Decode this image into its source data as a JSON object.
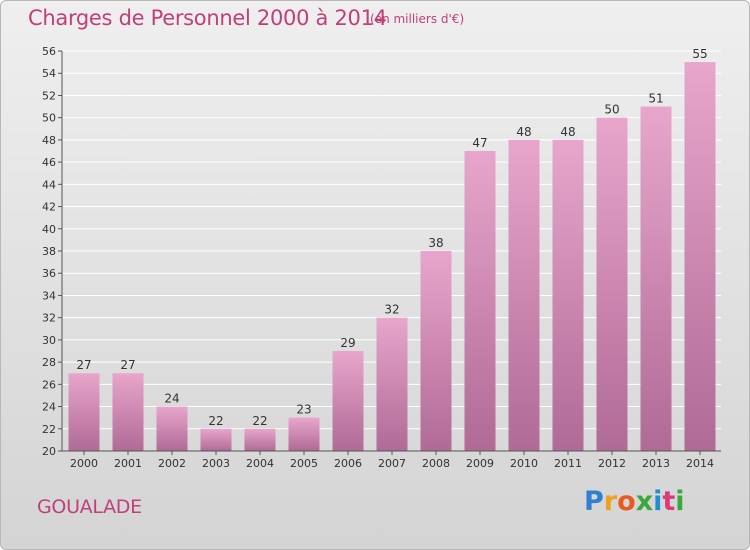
{
  "title": "Charges de Personnel 2000 à 2014",
  "subtitle": "(en milliers d'€)",
  "commune": "GOUALADE",
  "logo": {
    "letters": [
      "P",
      "r",
      "o",
      "x",
      "i",
      "t",
      "i"
    ],
    "colors": [
      "#2f7fd0",
      "#f0a020",
      "#e85a20",
      "#3aa83a",
      "#1e90d0",
      "#d83a7a",
      "#3aa83a"
    ]
  },
  "colors": {
    "title": "#c0407a",
    "bar_top": "#e8a6cc",
    "bar_bottom": "#b06a96",
    "grid": "#ffffff",
    "axis_text": "#333333"
  },
  "chart_data": {
    "type": "bar",
    "categories": [
      "2000",
      "2001",
      "2002",
      "2003",
      "2004",
      "2005",
      "2006",
      "2007",
      "2008",
      "2009",
      "2010",
      "2011",
      "2012",
      "2013",
      "2014"
    ],
    "values": [
      27,
      27,
      24,
      22,
      22,
      23,
      29,
      32,
      38,
      47,
      48,
      48,
      50,
      51,
      55
    ],
    "data_labels": [
      "27",
      "27",
      "24",
      "22",
      "22",
      "23",
      "29",
      "32",
      "38",
      "47",
      "48",
      "48",
      "50",
      "51",
      "55"
    ],
    "ylim": [
      20,
      56
    ],
    "yticks": [
      "20",
      "22",
      "24",
      "26",
      "28",
      "30",
      "32",
      "34",
      "36",
      "38",
      "40",
      "42",
      "44",
      "46",
      "48",
      "50",
      "52",
      "54",
      "56"
    ],
    "grid": true,
    "legend": "none"
  }
}
